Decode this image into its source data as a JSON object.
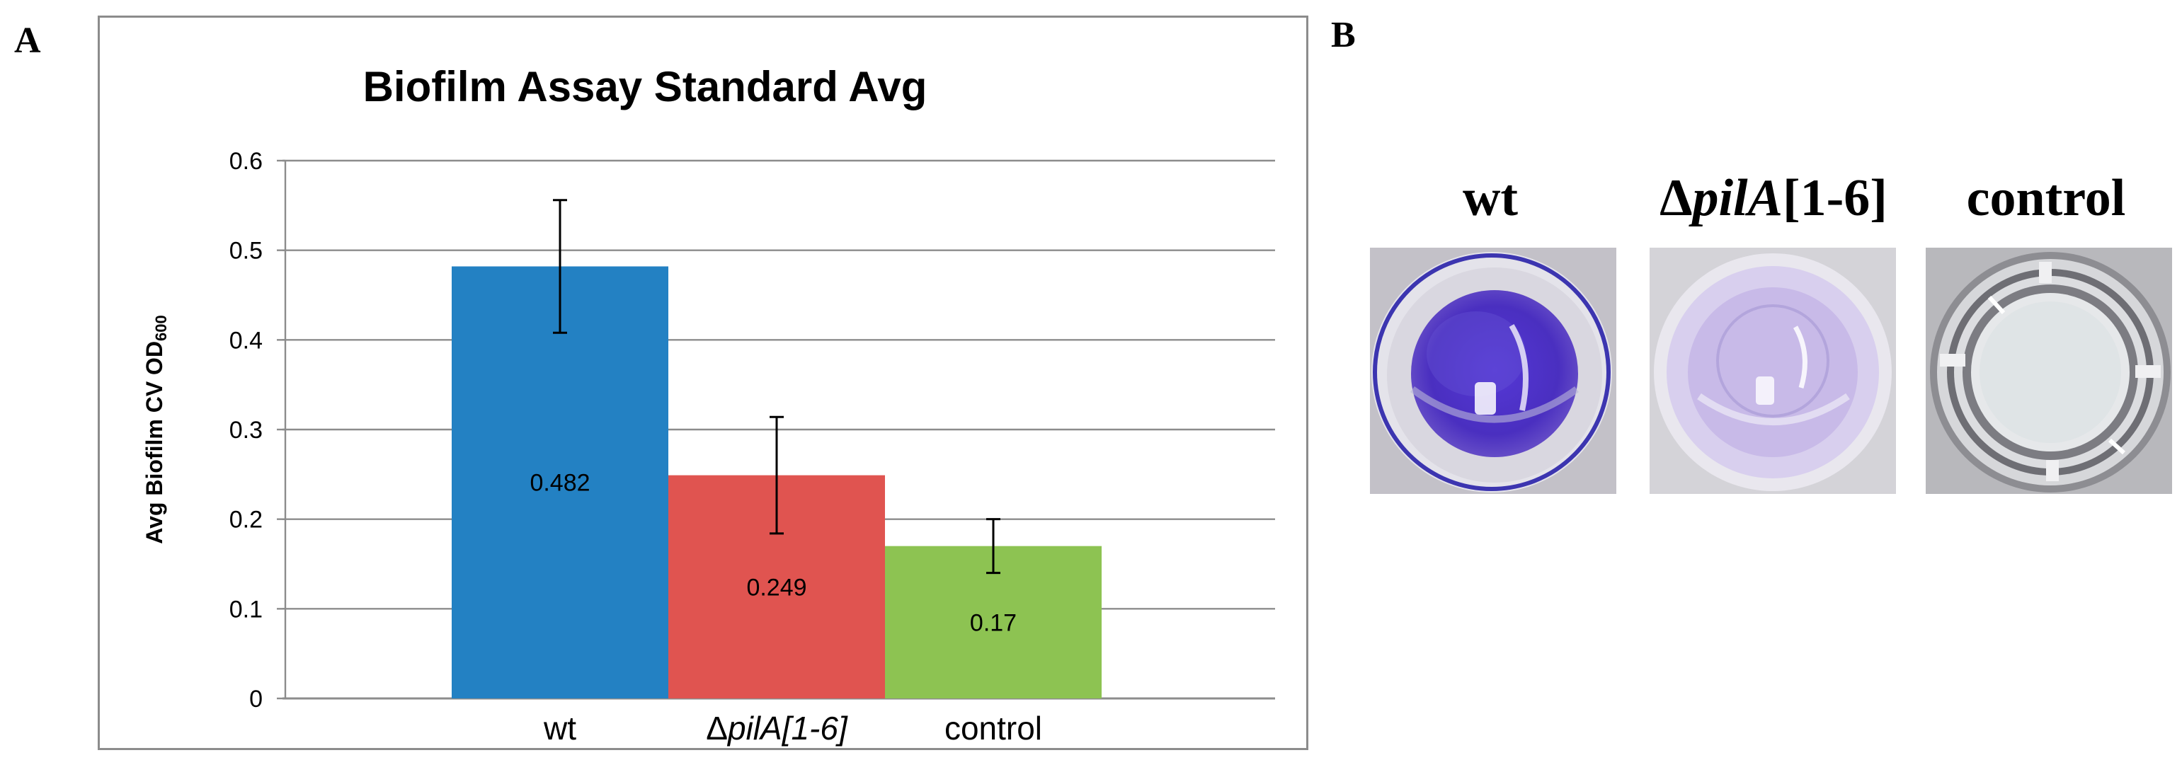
{
  "panel_a": {
    "letter": "A"
  },
  "panel_b": {
    "letter": "B",
    "wells": [
      {
        "label_prefix": "wt",
        "label_italic": "",
        "label_suffix": "",
        "stain": "dark purple",
        "stain_color": "#5a3fc4"
      },
      {
        "label_prefix": "Δ",
        "label_italic": "pilA",
        "label_suffix": "[1-6]",
        "stain": "light purple",
        "stain_color": "#cbbde8"
      },
      {
        "label_prefix": "control",
        "label_italic": "",
        "label_suffix": "",
        "stain": "clear",
        "stain_color": "#dfe4e6"
      }
    ]
  },
  "chart_data": {
    "type": "bar",
    "title": "Biofilm Assay Standard Avg",
    "xlabel": "",
    "ylabel": "Avg Biofilm CV OD600",
    "ylabel_main": "Avg Biofilm CV OD",
    "ylabel_sub": "600",
    "categories": [
      "wt",
      "ΔpilA[1-6]",
      "control"
    ],
    "category_parts": [
      {
        "prefix": "wt",
        "italic": ""
      },
      {
        "prefix": "Δ",
        "italic": "pilA[1-6]"
      },
      {
        "prefix": "control",
        "italic": ""
      }
    ],
    "values": [
      0.482,
      0.249,
      0.17
    ],
    "data_labels": [
      "0.482",
      "0.249",
      "0.17"
    ],
    "error": [
      0.074,
      0.065,
      0.03
    ],
    "colors": [
      "#2381c3",
      "#e05450",
      "#8dc352"
    ],
    "ylim": [
      0,
      0.6
    ],
    "yticks": [
      "0",
      "0.1",
      "0.2",
      "0.3",
      "0.4",
      "0.5",
      "0.6"
    ],
    "grid": true,
    "legend": "none"
  }
}
